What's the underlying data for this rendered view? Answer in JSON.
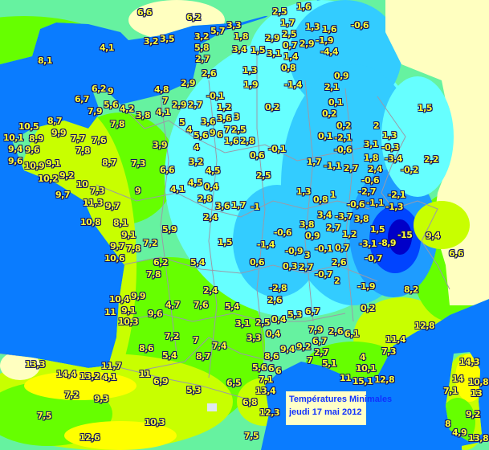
{
  "legend": {
    "title": "Températures Minimales",
    "date": "jeudi 17 mai 2012"
  },
  "colors": {
    "sea": "#0a7cff",
    "outside_land": "#ffffc0",
    "very_cold": "#0000c8",
    "cold": "#0044ff",
    "cool": "#1e9cff",
    "light_blue": "#33ccff",
    "cyan": "#66ffff",
    "mint": "#66f2a0",
    "green": "#66ff00",
    "yellow_green": "#c8ff00",
    "yellow": "#ffff00",
    "label_text": "#ffff33",
    "legend_text": "#1030ff"
  },
  "stations": [
    "6,6",
    "6,2",
    "3,2",
    "3,5",
    "4,1",
    "8,1",
    "5,7",
    "3,3",
    "1,8",
    "3,2",
    "5,8",
    "2,7",
    "3,4",
    "1,5",
    "3,1",
    "1,4",
    "2,5",
    "1,6",
    "1,7",
    "2,5",
    "2,9",
    "0,7",
    "0,8",
    "2,9",
    "1,3",
    "1,6",
    "-1,9",
    "-4,4",
    "-0,6",
    "2,6",
    "1,3",
    "2,9",
    "1,9",
    "-1,4",
    "0,9",
    "2,1",
    "1,5",
    "6,2",
    "9",
    "6,7",
    "7,9",
    "5,6",
    "4,2",
    "3,8",
    "7,8",
    "4,8",
    "7",
    "4,1",
    "2,9",
    "2,7",
    "-0,1",
    "1,2",
    "5",
    "0,2",
    "0,1",
    "0,2",
    "2",
    "0,2",
    "0,1",
    "-2,1",
    "-0,6",
    "1,3",
    "3,1",
    "-0,3",
    "-3,4",
    "2,2",
    "-0,2",
    "3,6",
    "3,6",
    "3",
    "2,5",
    "4",
    "9",
    "5,6",
    "6",
    "7",
    "1,6",
    "2,8",
    "8,7",
    "9,9",
    "10,5",
    "8,9",
    "10,1",
    "9,4",
    "9,6",
    "7,7",
    "7,6",
    "7,8",
    "9,6",
    "10,9",
    "9,1",
    "9,2",
    "10,2",
    "10",
    "7,3",
    "9,7",
    "11,3",
    "9,7",
    "10,8",
    "8,1",
    "8,7",
    "7,3",
    "9",
    "3,9",
    "6,6",
    "4",
    "3,2",
    "4,5",
    "4,1",
    "4,5",
    "0,4",
    "2,8",
    "3,6",
    "1,7",
    "-1",
    "2,4",
    "0,6",
    "-0,1",
    "2,5",
    "1,7",
    "1,3",
    "0,8",
    "1",
    "3,4",
    "5,9",
    "1,5",
    "-1,4",
    "0,6",
    "5,4",
    "6,2",
    "7,8",
    "7,2",
    "9,1",
    "9,7",
    "7,8",
    "10,6",
    "-1,1",
    "2,7",
    "1,8",
    "2,4",
    "-0,6",
    "-2,7",
    "-1,1",
    "-0,6",
    "-2,1",
    "-1,3",
    "-3,7",
    "3,8",
    "2,7",
    "1,2",
    "1,5",
    "-15",
    "-8,9",
    "-3,1",
    "-0,7",
    "9,4",
    "6,6",
    "3,8",
    "0,9",
    "-0,6",
    "-0,9",
    "3",
    "-0,1",
    "0,7",
    "2,6",
    "0,3",
    "2,7",
    "-0,7",
    "2",
    "-1,9",
    "8,2",
    "-2,8",
    "2,6",
    "0,2",
    "2,4",
    "4,7",
    "7,6",
    "5,4",
    "9,9",
    "10,4",
    "11",
    "9,1",
    "10,3",
    "9,6",
    "3,1",
    "2,5",
    "0,4",
    "0,4",
    "3,3",
    "5,3",
    "6,7",
    "7,9",
    "2,6",
    "6,1",
    "6,7",
    "2,7",
    "7,2",
    "7",
    "7,4",
    "5,4",
    "8,7",
    "8,6",
    "11",
    "6,9",
    "6,5",
    "5,3",
    "9,4",
    "9,2",
    "8,6",
    "5,6",
    "6",
    "6",
    "7,1",
    "7",
    "5,1",
    "4",
    "10,1",
    "11",
    "15,1",
    "12,8",
    "11,4",
    "7,3",
    "12,8",
    "13,4",
    "6,8",
    "12,3",
    "7,5",
    "13,3",
    "14,4",
    "13,2",
    "4,1",
    "11,7",
    "7,2",
    "9,3",
    "7,5",
    "12,6",
    "10,3",
    "14,3",
    "14",
    "10,8",
    "7,1",
    "13",
    "9,2",
    "8",
    "4,9",
    "13,8"
  ]
}
